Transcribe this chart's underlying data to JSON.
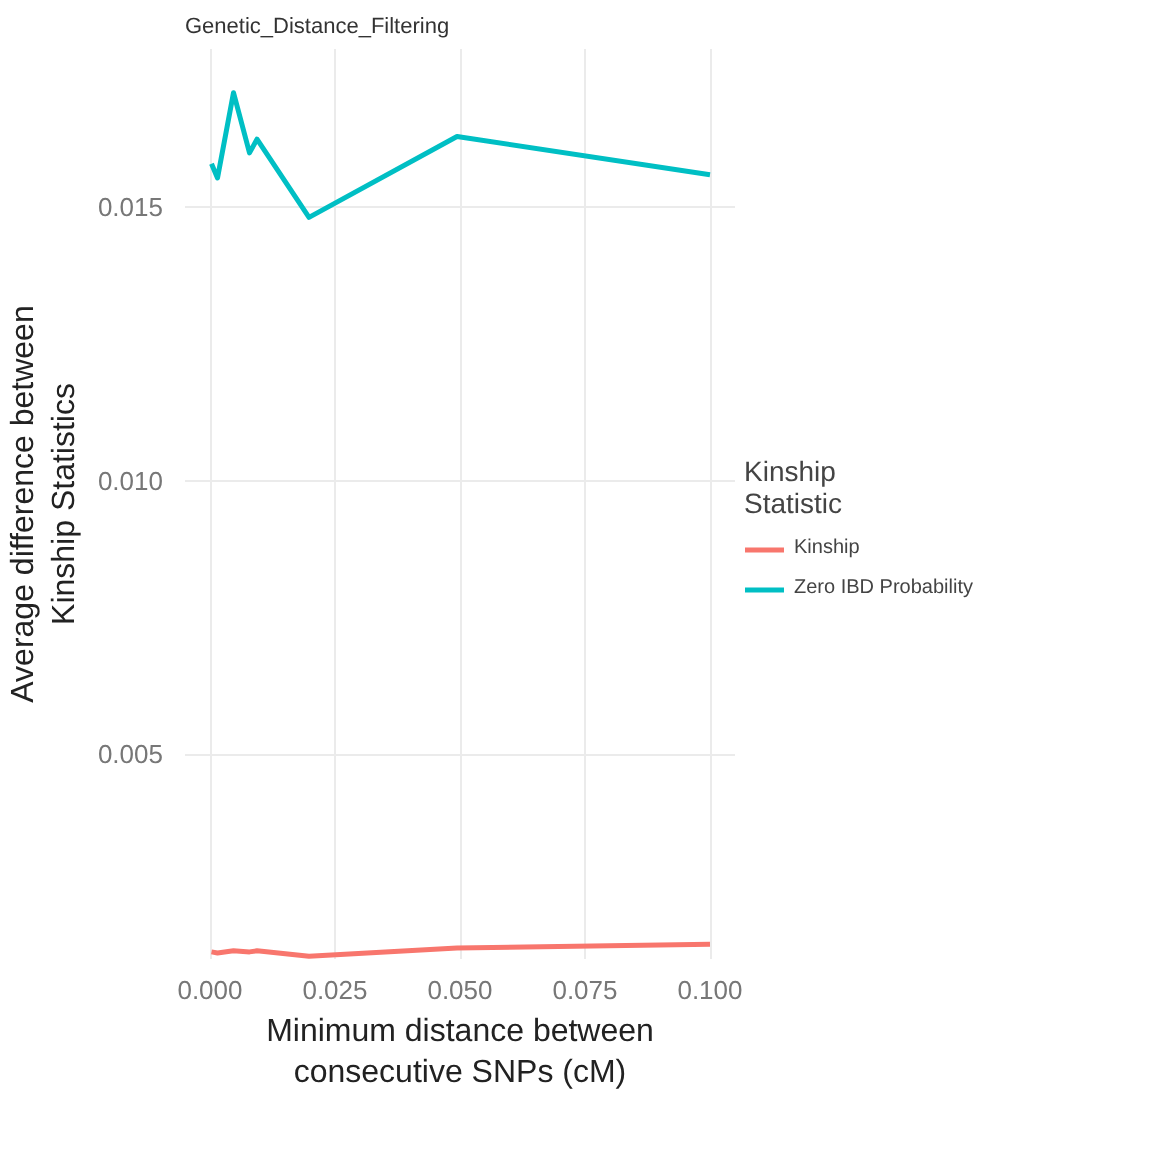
{
  "chart_data": {
    "type": "line",
    "title": "Genetic_Distance_Filtering",
    "xlabel": "Minimum distance between\nconsecutive SNPs (cM)",
    "ylabel": "Average difference between\nKinship Statistics",
    "legend_title": "Kinship\nStatistic",
    "x": [
      0.0003,
      0.0015,
      0.0047,
      0.0079,
      0.0094,
      0.0198,
      0.0494,
      0.1
    ],
    "series": [
      {
        "name": "Kinship",
        "color": "#f8766d",
        "values": [
          0.00138,
          0.00136,
          0.0014,
          0.00138,
          0.0014,
          0.0013,
          0.00145,
          0.00152
        ]
      },
      {
        "name": "Zero IBD Probability",
        "color": "#00bfc4",
        "values": [
          0.0158,
          0.01554,
          0.0171,
          0.016,
          0.01625,
          0.01482,
          0.0163,
          0.0156
        ]
      }
    ],
    "xlim": [
      -0.005,
      0.105
    ],
    "ylim": [
      0.00125,
      0.0179
    ],
    "xticks": [
      {
        "value": 0,
        "label": "0.000"
      },
      {
        "value": 0.025,
        "label": "0.025"
      },
      {
        "value": 0.05,
        "label": "0.050"
      },
      {
        "value": 0.075,
        "label": "0.075"
      },
      {
        "value": 0.1,
        "label": "0.100"
      }
    ],
    "yticks": [
      0.005,
      {
        "value": 0.01,
        "label": "0.010"
      },
      0.015
    ],
    "grid": true,
    "legend": "right",
    "line_style": "solid",
    "marker": "none"
  }
}
